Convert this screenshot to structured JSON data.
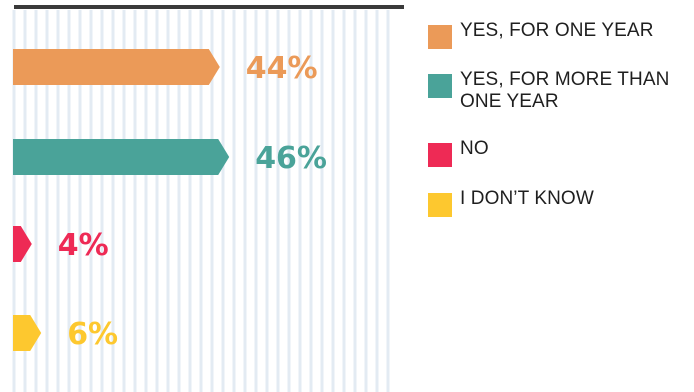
{
  "chart_data": {
    "type": "bar",
    "orientation": "horizontal",
    "categories": [
      "YES, FOR ONE YEAR",
      "YES, FOR MORE THAN ONE YEAR",
      "NO",
      "I DON’T KNOW"
    ],
    "values": [
      44,
      46,
      4,
      6
    ],
    "data_labels": [
      "44%",
      "46%",
      "4%",
      "6%"
    ],
    "colors": [
      "#eb9a58",
      "#4aa399",
      "#ee2a55",
      "#fdc82f"
    ],
    "xlim": [
      0,
      100
    ],
    "grid": true,
    "legend_position": "right"
  },
  "legend": [
    {
      "label": "YES, FOR ONE YEAR",
      "color": "#eb9a58"
    },
    {
      "label": "YES, FOR MORE THAN ONE YEAR",
      "color": "#4aa399"
    },
    {
      "label": "NO",
      "color": "#ee2a55"
    },
    {
      "label": "I DON’T KNOW",
      "color": "#fdc82f"
    }
  ]
}
